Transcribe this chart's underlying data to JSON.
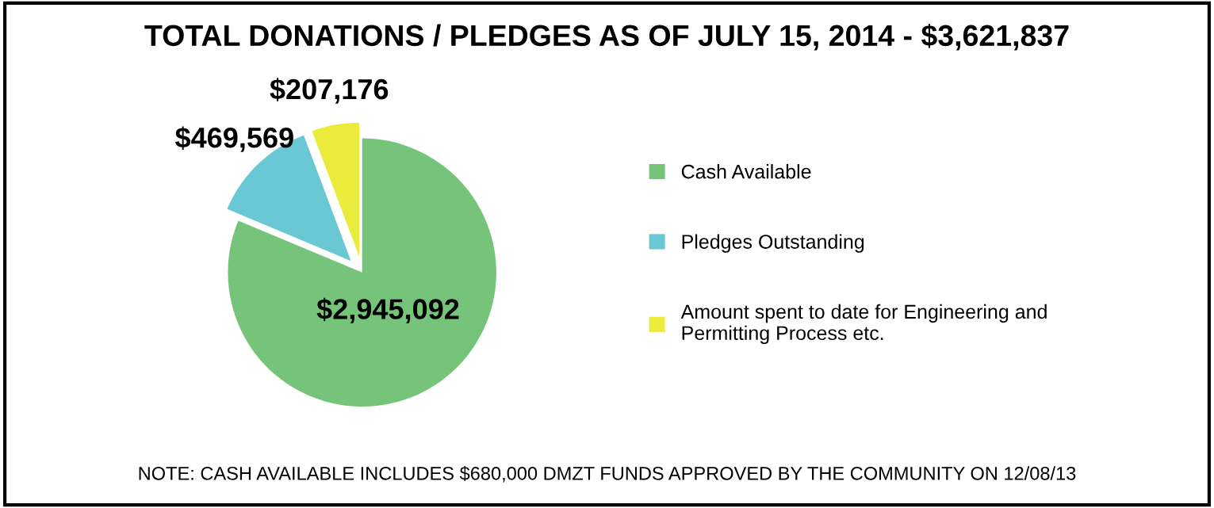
{
  "chart_data": {
    "type": "pie",
    "title": "TOTAL DONATIONS / PLEDGES AS OF JULY 15, 2014 - $3,621,837",
    "categories": [
      "Cash Available",
      "Pledges Outstanding",
      "Amount spent to date for Engineering and\nPermitting Process etc."
    ],
    "values": [
      2945092,
      469569,
      207176
    ],
    "colors": [
      "#76c47a",
      "#6ac8d4",
      "#ebeb3c"
    ],
    "value_labels": [
      "$2,945,092",
      "$469,569",
      "$207,176"
    ],
    "legend": "right",
    "annotations": [
      "NOTE: CASH AVAILABLE INCLUDES $680,000 DMZT FUNDS APPROVED BY THE COMMUNITY ON 12/08/13"
    ]
  }
}
